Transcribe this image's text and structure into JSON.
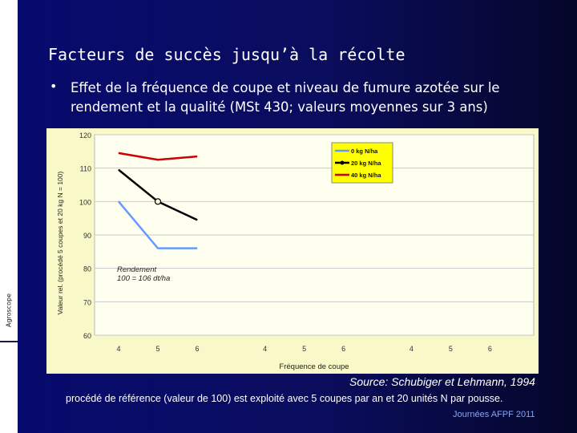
{
  "slide": {
    "title": "Facteurs de succès jusqu’à la récolte",
    "bullet": "•",
    "subtitle": "Effet de la fréquence de coupe et niveau de fumure azotée sur le rendement et la qualité (MSt 430; valeurs moyennes sur 3 ans)",
    "sidebar_brand": "Agroscope",
    "source": "Source: Schubiger et Lehmann, 1994",
    "footnote": "procédé de référence (valeur de 100) est exploité avec 5 coupes par an et 20 unités N par pousse.",
    "footer": "Journées AFPF 2011"
  },
  "colors": {
    "background": "#070a6e",
    "chart_bg": "#f8f8c8",
    "legend_bg": "#ffff00",
    "series_0N": "#6699ff",
    "series_20N": "#000000",
    "series_40N": "#cc0000"
  },
  "chart_data": {
    "type": "line",
    "ylabel": "Valeur rel. (procédé 5 coupes et 20 kg N = 100)",
    "xlabel": "Fréquence de coupe",
    "ylim": [
      60,
      120
    ],
    "yticks": [
      60,
      70,
      80,
      90,
      100,
      110,
      120
    ],
    "grid": true,
    "legend_position": "top-right",
    "groups": [
      {
        "categories": [
          "4",
          "5",
          "6"
        ]
      },
      {
        "categories": [
          "4",
          "5",
          "6"
        ]
      },
      {
        "categories": [
          "4",
          "5",
          "6"
        ]
      }
    ],
    "series": [
      {
        "name": "0 kg N/ha",
        "color": "#6699ff",
        "group": 0,
        "values": [
          100,
          86,
          86
        ]
      },
      {
        "name": "20 kg N/ha",
        "color": "#000000",
        "group": 0,
        "values": [
          109.5,
          100,
          94.5
        ],
        "marker_at": 1
      },
      {
        "name": "40 kg N/ha",
        "color": "#cc0000",
        "group": 0,
        "values": [
          114.5,
          112.5,
          113.5
        ]
      }
    ],
    "annotation": "Rendement\n100 = 106 dt/ha"
  }
}
